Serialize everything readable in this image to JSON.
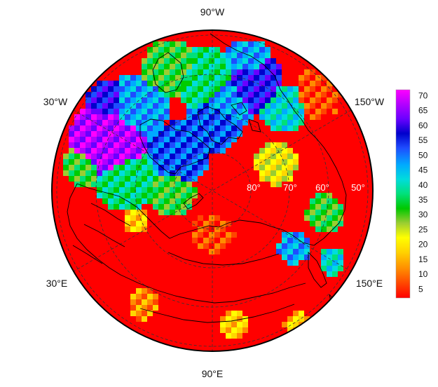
{
  "map": {
    "projection": "north polar stereographic",
    "colormap": [
      "#ff0000",
      "#ff4500",
      "#ff8c00",
      "#ffd700",
      "#ffff00",
      "#9acd32",
      "#00cc00",
      "#00e07a",
      "#00dddd",
      "#00aaff",
      "#1e4dff",
      "#0000cc",
      "#6a00ff",
      "#b300ff",
      "#ff00ff"
    ],
    "meridian_labels": [
      {
        "id": "90w",
        "text": "90°W"
      },
      {
        "id": "30w",
        "text": "30°W"
      },
      {
        "id": "150w",
        "text": "150°W"
      },
      {
        "id": "30e",
        "text": "30°E"
      },
      {
        "id": "150e",
        "text": "150°E"
      },
      {
        "id": "90e",
        "text": "90°E"
      }
    ],
    "latitude_labels": [
      {
        "id": "80",
        "text": "80°"
      },
      {
        "id": "70",
        "text": "70°"
      },
      {
        "id": "60",
        "text": "60°"
      },
      {
        "id": "50",
        "text": "50°"
      }
    ],
    "colorbar": {
      "min": 2,
      "max": 72,
      "ticks": [
        "70",
        "65",
        "60",
        "55",
        "50",
        "45",
        "40",
        "35",
        "30",
        "25",
        "20",
        "15",
        "10",
        "5"
      ]
    }
  }
}
